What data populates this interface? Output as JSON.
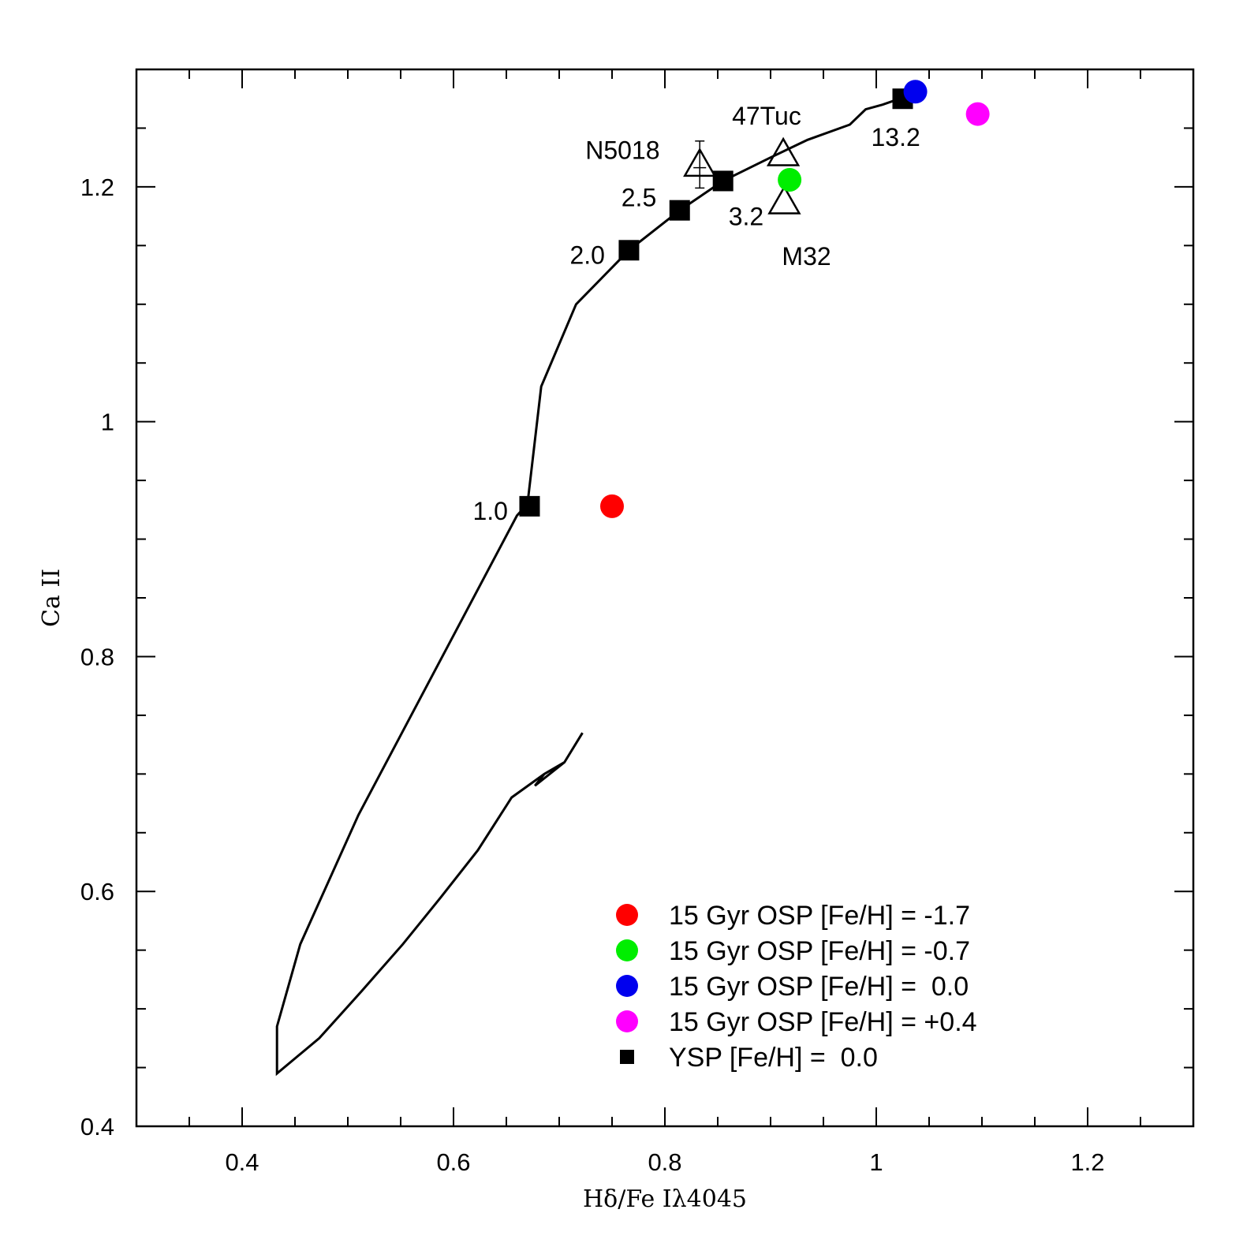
{
  "chart_data": {
    "type": "scatter",
    "title": "",
    "xlabel": "Hδ/Fe Iλ4045",
    "ylabel": "Ca II",
    "xlim": [
      0.3,
      1.3
    ],
    "ylim": [
      0.4,
      1.3
    ],
    "x_ticks": [
      {
        "value": 0.4,
        "label": "0.4"
      },
      {
        "value": 0.6,
        "label": "0.6"
      },
      {
        "value": 0.8,
        "label": "0.8"
      },
      {
        "value": 1.0,
        "label": "1"
      },
      {
        "value": 1.2,
        "label": "1.2"
      }
    ],
    "y_ticks": [
      {
        "value": 0.4,
        "label": "0.4"
      },
      {
        "value": 0.6,
        "label": "0.6"
      },
      {
        "value": 0.8,
        "label": "0.8"
      },
      {
        "value": 1.0,
        "label": "1"
      },
      {
        "value": 1.2,
        "label": "1.2"
      }
    ],
    "x_minor_step": 0.05,
    "y_minor_step": 0.05,
    "ysp_track": {
      "name": "YSP [Fe/H] =  0.0",
      "x": [
        0.722,
        0.705,
        0.686,
        0.677,
        0.705,
        0.686,
        0.655,
        0.623,
        0.588,
        0.552,
        0.513,
        0.473,
        0.433,
        0.433,
        0.455,
        0.51,
        0.66,
        0.67,
        0.683,
        0.716,
        0.766,
        0.814,
        0.855,
        0.9,
        0.935,
        0.975,
        0.99,
        1.006,
        1.022
      ],
      "y": [
        0.735,
        0.71,
        0.7,
        0.69,
        0.71,
        0.7,
        0.68,
        0.635,
        0.595,
        0.555,
        0.515,
        0.475,
        0.445,
        0.485,
        0.555,
        0.665,
        0.92,
        0.93,
        1.03,
        1.1,
        1.146,
        1.18,
        1.205,
        1.225,
        1.24,
        1.253,
        1.266,
        1.27,
        1.275
      ]
    },
    "ysp_points": [
      {
        "x": 0.672,
        "y": 0.928,
        "label": "1.0"
      },
      {
        "x": 0.766,
        "y": 1.146,
        "label": "2.0"
      },
      {
        "x": 0.814,
        "y": 1.18,
        "label": "2.5"
      },
      {
        "x": 0.855,
        "y": 1.205,
        "label": "3.2"
      },
      {
        "x": 1.025,
        "y": 1.275,
        "label": "13.2"
      }
    ],
    "osp_points": [
      {
        "name": "15 Gyr OSP [Fe/H] = -1.7",
        "color": "#ff0000",
        "x": 0.75,
        "y": 0.928
      },
      {
        "name": "15 Gyr OSP [Fe/H] = -0.7",
        "color": "#00ee00",
        "x": 0.918,
        "y": 1.206
      },
      {
        "name": "15 Gyr OSP [Fe/H] =  0.0",
        "color": "#0000ee",
        "x": 1.037,
        "y": 1.281
      },
      {
        "name": "15 Gyr OSP [Fe/H] = +0.4",
        "color": "#ff00ff",
        "x": 1.096,
        "y": 1.262
      }
    ],
    "clusters": [
      {
        "name": "47Tuc",
        "x": 0.912,
        "y": 1.228
      },
      {
        "name": "M32",
        "x": 0.913,
        "y": 1.187
      },
      {
        "name": "N5018",
        "x": 0.833,
        "y": 1.219,
        "yerr": 0.02,
        "xerr": 0.006
      }
    ],
    "legend": {
      "placement": "bottom-right",
      "entries": [
        {
          "label": "15 Gyr OSP [Fe/H] = -1.7",
          "marker": "circle",
          "color": "#ff0000"
        },
        {
          "label": "15 Gyr OSP [Fe/H] = -0.7",
          "marker": "circle",
          "color": "#00ee00"
        },
        {
          "label": "15 Gyr OSP [Fe/H] =  0.0",
          "marker": "circle",
          "color": "#0000ee"
        },
        {
          "label": "15 Gyr OSP [Fe/H] = +0.4",
          "marker": "circle",
          "color": "#ff00ff"
        },
        {
          "label": "YSP [Fe/H] =  0.0",
          "marker": "square",
          "color": "#000000"
        }
      ]
    }
  }
}
